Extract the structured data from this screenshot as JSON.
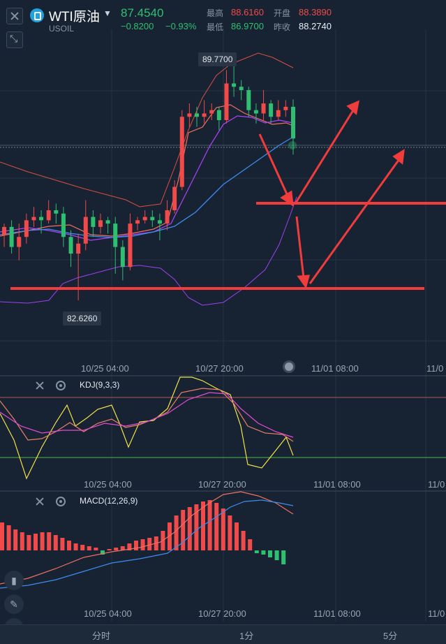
{
  "header": {
    "name": "WTI原油",
    "code": "USOIL",
    "last": "87.4540",
    "change": "−0.8200",
    "change_pct": "−0.93%",
    "high_label": "最高",
    "high_value": "88.6160",
    "low_label": "最低",
    "low_value": "86.9700",
    "open_label": "开盘",
    "open_value": "88.3890",
    "prev_close_label": "昨收",
    "prev_close_value": "88.2740"
  },
  "main_chart": {
    "max_label": "89.7700",
    "min_label": "82.6260",
    "x_labels": [
      "10/25 04:00",
      "10/27 20:00",
      "11/01 08:00",
      "11/0"
    ]
  },
  "kdj": {
    "title": "KDJ(9,3,3)",
    "x_labels": [
      "10/25 04:00",
      "10/27 20:00",
      "11/01 08:00",
      "11/0"
    ]
  },
  "macd": {
    "title": "MACD(12,26,9)",
    "x_labels": [
      "10/25 04:00",
      "10/27 20:00",
      "11/01 08:00",
      "11/0"
    ]
  },
  "bottom_tabs": [
    "分时",
    "1分",
    "5分"
  ],
  "colors": {
    "up": "#f04a4a",
    "down": "#2fbf71",
    "background": "#172332",
    "ma_red": "#f07060",
    "ma_purple": "#b040ff",
    "ma_blue": "#3d8df0",
    "drawing_red": "#f03c3c",
    "kdj_yellow": "#f2e24a",
    "kdj_pink": "#e34cd3"
  },
  "chart_data": {
    "type": "candlestick",
    "title": "",
    "y_range": [
      82.6,
      89.8
    ],
    "note_lines": [
      86.93,
      82.95
    ],
    "candles": [
      [
        84.55,
        84.8,
        84.2,
        84.9
      ],
      [
        84.8,
        84.2,
        84.0,
        85.0
      ],
      [
        84.2,
        84.5,
        83.8,
        84.9
      ],
      [
        84.5,
        85.0,
        84.3,
        85.2
      ],
      [
        85.0,
        85.1,
        84.8,
        85.4
      ],
      [
        85.1,
        85.0,
        84.6,
        85.3
      ],
      [
        85.0,
        85.3,
        84.9,
        85.6
      ],
      [
        85.3,
        85.2,
        84.9,
        85.5
      ],
      [
        85.2,
        84.5,
        84.2,
        85.4
      ],
      [
        84.5,
        84.0,
        83.6,
        84.7
      ],
      [
        84.0,
        84.3,
        82.6,
        84.6
      ],
      [
        84.3,
        85.1,
        84.1,
        85.6
      ],
      [
        85.1,
        84.8,
        84.5,
        85.3
      ],
      [
        84.8,
        85.0,
        84.6,
        85.2
      ],
      [
        85.0,
        84.9,
        84.6,
        85.1
      ],
      [
        84.9,
        84.2,
        83.4,
        85.1
      ],
      [
        84.2,
        83.6,
        83.2,
        84.4
      ],
      [
        83.6,
        84.9,
        83.5,
        85.2
      ],
      [
        84.9,
        85.0,
        84.7,
        85.1
      ],
      [
        85.0,
        85.1,
        84.9,
        85.3
      ],
      [
        85.1,
        85.0,
        84.8,
        85.3
      ],
      [
        85.0,
        84.9,
        84.4,
        85.2
      ],
      [
        84.9,
        85.3,
        84.7,
        85.6
      ],
      [
        85.3,
        86.0,
        85.2,
        86.2
      ],
      [
        86.0,
        88.1,
        85.9,
        88.3
      ],
      [
        88.1,
        88.2,
        87.8,
        88.5
      ],
      [
        88.2,
        88.1,
        87.8,
        88.4
      ],
      [
        88.1,
        88.2,
        87.9,
        88.6
      ],
      [
        88.2,
        88.3,
        88.0,
        88.5
      ],
      [
        88.3,
        88.0,
        87.7,
        88.4
      ],
      [
        88.0,
        89.1,
        87.9,
        89.5
      ],
      [
        89.1,
        89.0,
        88.7,
        89.77
      ],
      [
        89.0,
        88.9,
        88.6,
        89.2
      ],
      [
        88.9,
        88.3,
        88.1,
        89.0
      ],
      [
        88.3,
        88.2,
        87.9,
        88.5
      ],
      [
        88.2,
        88.5,
        88.0,
        88.9
      ],
      [
        88.5,
        88.1,
        87.9,
        88.6
      ],
      [
        88.1,
        88.3,
        88.0,
        88.6
      ],
      [
        88.3,
        88.4,
        88.1,
        88.6
      ],
      [
        88.4,
        87.45,
        86.97,
        88.62
      ]
    ]
  }
}
